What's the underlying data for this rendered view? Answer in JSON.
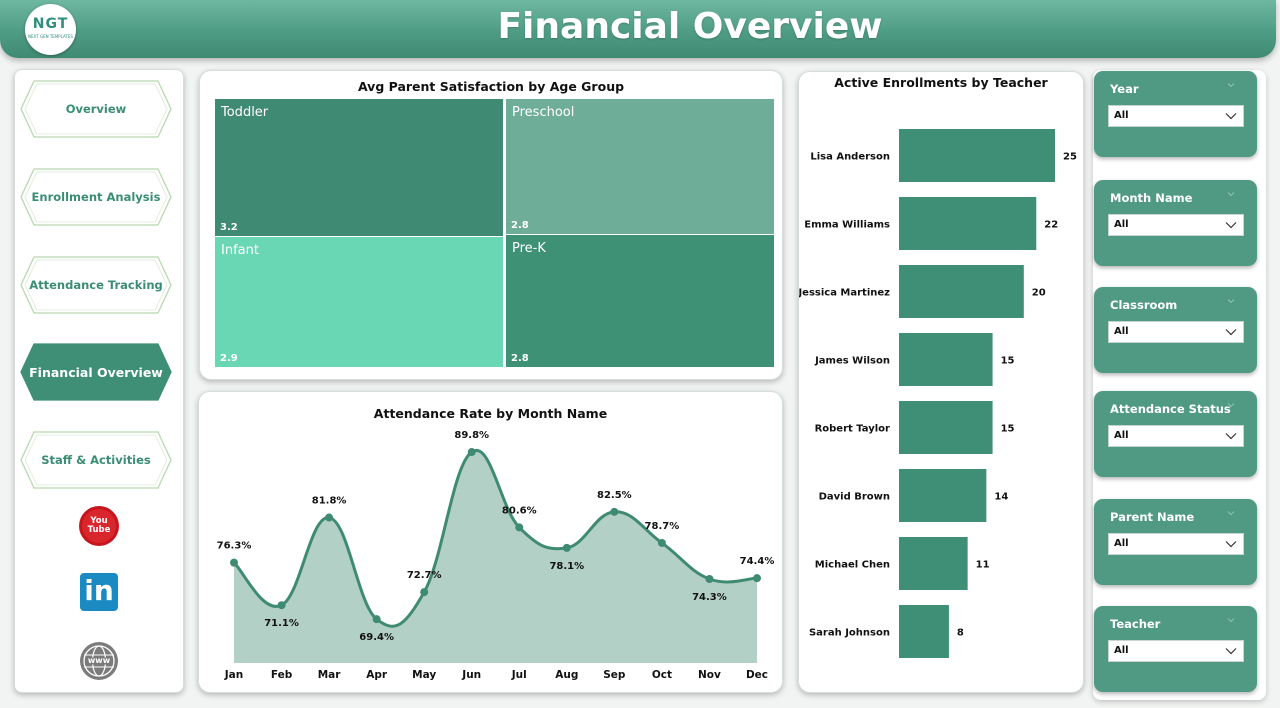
{
  "header": {
    "title": "Financial Overview",
    "logo_text": "NGT",
    "logo_sub": "NEXT GEN TEMPLATES"
  },
  "nav": {
    "items": [
      {
        "label": "Overview",
        "active": false
      },
      {
        "label": "Enrollment Analysis",
        "active": false
      },
      {
        "label": "Attendance Tracking",
        "active": false
      },
      {
        "label": "Financial Overview",
        "active": true
      },
      {
        "label": "Staff & Activities",
        "active": false
      }
    ],
    "social": [
      {
        "icon": "youtube-icon",
        "text": "You Tube"
      },
      {
        "icon": "linkedin-icon",
        "text": "in"
      },
      {
        "icon": "globe-icon",
        "text": "www"
      }
    ]
  },
  "treemap": {
    "title": "Avg Parent Satisfaction by Age Group",
    "tiles": [
      {
        "label": "Toddler",
        "value": "3.2",
        "color": "#3e8a72"
      },
      {
        "label": "Preschool",
        "value": "2.8",
        "color": "#6eae98"
      },
      {
        "label": "Infant",
        "value": "2.9",
        "color": "#6ad7b4"
      },
      {
        "label": "Pre-K",
        "value": "2.8",
        "color": "#3f9176"
      }
    ]
  },
  "line_chart": {
    "title": "Attendance Rate by Month Name",
    "color": "#3f8a72",
    "fill": "#b3d0c6"
  },
  "bar_chart": {
    "title": "Active Enrollments by Teacher",
    "color": "#3e8f76"
  },
  "chart_data": [
    {
      "type": "treemap",
      "title": "Avg Parent Satisfaction by Age Group",
      "categories": [
        "Toddler",
        "Preschool",
        "Infant",
        "Pre-K"
      ],
      "values": [
        3.2,
        2.8,
        2.9,
        2.8
      ]
    },
    {
      "type": "area",
      "title": "Attendance Rate by Month Name",
      "categories": [
        "Jan",
        "Feb",
        "Mar",
        "Apr",
        "May",
        "Jun",
        "Jul",
        "Aug",
        "Sep",
        "Oct",
        "Nov",
        "Dec"
      ],
      "values": [
        76.3,
        71.1,
        81.8,
        69.4,
        72.7,
        89.8,
        80.6,
        78.1,
        82.5,
        78.7,
        74.3,
        74.4
      ],
      "labels": [
        "76.3%",
        "71.1%",
        "81.8%",
        "69.4%",
        "72.7%",
        "89.8%",
        "80.6%",
        "78.1%",
        "82.5%",
        "78.7%",
        "74.3%",
        "74.4%"
      ],
      "grid": false
    },
    {
      "type": "bar",
      "orientation": "horizontal",
      "title": "Active Enrollments by Teacher",
      "categories": [
        "Lisa Anderson",
        "Emma Williams",
        "Jessica Martinez",
        "James Wilson",
        "Robert Taylor",
        "David Brown",
        "Michael Chen",
        "Sarah Johnson"
      ],
      "values": [
        25,
        22,
        20,
        15,
        15,
        14,
        11,
        8
      ],
      "grid": false
    }
  ],
  "filters": [
    {
      "label": "Year",
      "value": "All"
    },
    {
      "label": "Month Name",
      "value": "All"
    },
    {
      "label": "Classroom",
      "value": "All"
    },
    {
      "label": "Attendance Status",
      "value": "All"
    },
    {
      "label": "Parent Name",
      "value": "All"
    },
    {
      "label": "Teacher",
      "value": "All"
    }
  ]
}
